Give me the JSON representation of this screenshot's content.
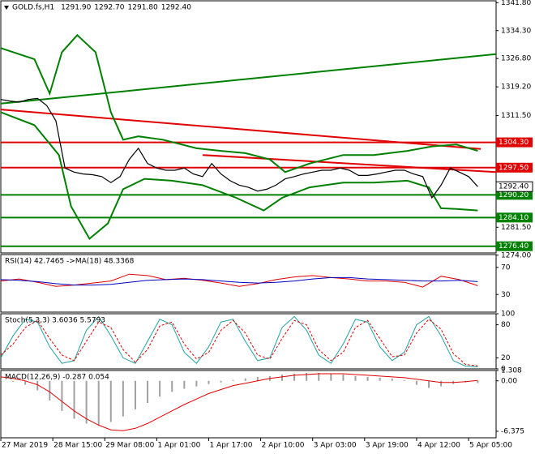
{
  "chart_data": [
    {
      "type": "line",
      "title": "GOLD.fs,H1",
      "ohlc": [
        "1291.90",
        "1292.70",
        "1291.80",
        "1292.40"
      ],
      "xlim": [
        0,
        162
      ],
      "xticks": [
        {
          "value": 0,
          "label": "27 Mar 2019"
        },
        {
          "value": 17,
          "label": "28 Mar 15:00"
        },
        {
          "value": 34,
          "label": "29 Mar 08:00"
        },
        {
          "value": 51,
          "label": "1 Apr 01:00"
        },
        {
          "value": 68,
          "label": "1 Apr 17:00"
        },
        {
          "value": 85,
          "label": "2 Apr 10:00"
        },
        {
          "value": 102,
          "label": "3 Apr 03:00"
        },
        {
          "value": 119,
          "label": "3 Apr 19:00"
        },
        {
          "value": 136,
          "label": "4 Apr 12:00"
        },
        {
          "value": 153,
          "label": "5 Apr 05:00"
        }
      ],
      "ylim": [
        1274.6,
        1342.3
      ],
      "yticks": [
        {
          "value": 1341.8,
          "label": "1341.80"
        },
        {
          "value": 1334.3,
          "label": "1334.30"
        },
        {
          "value": 1326.8,
          "label": "1326.80"
        },
        {
          "value": 1319.2,
          "label": "1319.20"
        },
        {
          "value": 1311.5,
          "label": "1311.50"
        },
        {
          "value": 1281.5,
          "label": "1281.50"
        },
        {
          "value": 1274.0,
          "label": "1274.00"
        }
      ],
      "levels": [
        {
          "value": 1304.3,
          "label": "1304.30",
          "color": "#e00000"
        },
        {
          "value": 1297.5,
          "label": "1297.50",
          "color": "#e00000"
        },
        {
          "value": 1290.2,
          "label": "1290.20",
          "color": "#008000"
        },
        {
          "value": 1284.1,
          "label": "1284.10",
          "color": "#008000"
        },
        {
          "value": 1276.4,
          "label": "1276.40",
          "color": "#008000"
        }
      ],
      "last_price": {
        "value": 1292.4,
        "label": "1292.40"
      },
      "series": [
        {
          "color": "#008000",
          "width": 2,
          "x": [
            0,
            162
          ],
          "values": [
            1314.7,
            1328.0
          ]
        },
        {
          "color": "#e00000",
          "width": 2,
          "x": [
            0,
            157
          ],
          "values": [
            1313.1,
            1302.5
          ]
        },
        {
          "color": "#e00000",
          "width": 2,
          "x": [
            66,
            162
          ],
          "values": [
            1300.9,
            1296.3
          ]
        },
        {
          "color": "#008000",
          "width": 2,
          "x": [
            0,
            11,
            16,
            20,
            25,
            31,
            36,
            40,
            45,
            53,
            64,
            72,
            80,
            88,
            93,
            101,
            112,
            122,
            133,
            141,
            149,
            156
          ],
          "values": [
            1329.6,
            1326.6,
            1317.4,
            1328.5,
            1333.1,
            1328.5,
            1312.4,
            1305.0,
            1305.9,
            1305.0,
            1302.7,
            1302.0,
            1301.4,
            1299.7,
            1296.3,
            1298.6,
            1300.9,
            1300.9,
            1302.0,
            1303.2,
            1303.7,
            1302.0
          ]
        },
        {
          "color": "#008000",
          "width": 2,
          "x": [
            0,
            11,
            19,
            23,
            29,
            35,
            40,
            47,
            56,
            66,
            77,
            86,
            92,
            101,
            112,
            122,
            133,
            140,
            144,
            149,
            156
          ],
          "values": [
            1312.4,
            1308.9,
            1300.9,
            1287.1,
            1278.4,
            1282.5,
            1291.7,
            1294.5,
            1294.0,
            1292.8,
            1289.4,
            1286.0,
            1289.4,
            1292.2,
            1293.5,
            1293.5,
            1294.0,
            1292.2,
            1286.6,
            1286.4,
            1286.0
          ]
        },
        {
          "color": "#000000",
          "width": 1.2,
          "x": [
            0,
            3,
            6,
            9,
            12,
            15,
            18,
            21,
            24,
            27,
            30,
            33,
            36,
            39,
            42,
            45,
            48,
            51,
            54,
            57,
            60,
            63,
            66,
            69,
            72,
            75,
            78,
            81,
            84,
            87,
            90,
            93,
            96,
            99,
            102,
            105,
            108,
            111,
            114,
            117,
            120,
            123,
            126,
            129,
            132,
            135,
            138,
            141,
            144,
            147,
            150,
            153,
            156
          ],
          "values": [
            1315.8,
            1315.4,
            1315.1,
            1315.8,
            1316.1,
            1314.2,
            1310.1,
            1297.4,
            1296.3,
            1295.8,
            1295.6,
            1295.1,
            1293.5,
            1295.1,
            1299.7,
            1302.7,
            1298.6,
            1297.4,
            1296.8,
            1296.8,
            1297.4,
            1295.8,
            1295.1,
            1298.6,
            1295.8,
            1294.0,
            1292.8,
            1292.2,
            1291.2,
            1291.7,
            1292.8,
            1294.5,
            1295.1,
            1295.8,
            1296.3,
            1296.8,
            1296.8,
            1297.4,
            1296.8,
            1295.4,
            1295.4,
            1295.8,
            1296.3,
            1296.8,
            1296.8,
            1295.8,
            1295.1,
            1289.4,
            1292.8,
            1297.4,
            1296.3,
            1295.1,
            1292.4
          ]
        }
      ]
    },
    {
      "type": "line",
      "title": "RSI(14) 42.7465  ->MA(18) 48.3368",
      "ylim": [
        4,
        89
      ],
      "yticks": [
        70,
        30
      ],
      "series": [
        {
          "color": "#e00000",
          "width": 1,
          "x": [
            0,
            6,
            12,
            18,
            24,
            30,
            36,
            42,
            48,
            54,
            60,
            66,
            72,
            78,
            84,
            90,
            96,
            102,
            108,
            114,
            120,
            126,
            132,
            138,
            144,
            150,
            156
          ],
          "values": [
            50,
            53,
            48,
            42,
            44,
            47,
            50,
            60,
            58,
            52,
            54,
            51,
            47,
            42,
            46,
            52,
            56,
            58,
            55,
            53,
            50,
            50,
            48,
            41,
            57,
            52,
            43
          ]
        },
        {
          "color": "#0000c0",
          "width": 1,
          "x": [
            0,
            6,
            12,
            18,
            24,
            30,
            36,
            42,
            48,
            54,
            60,
            66,
            72,
            78,
            84,
            90,
            96,
            102,
            108,
            114,
            120,
            126,
            132,
            138,
            144,
            150,
            156
          ],
          "values": [
            52,
            51,
            49,
            46,
            44,
            44,
            45,
            48,
            51,
            52,
            53,
            52,
            50,
            48,
            47,
            48,
            50,
            53,
            55,
            55,
            53,
            52,
            51,
            50,
            50,
            51,
            49
          ]
        }
      ]
    },
    {
      "type": "line",
      "title": "Stoch(5,3,3) 3.6036 5.5793",
      "ylim": [
        0,
        100
      ],
      "yticks": [
        100,
        80,
        20,
        0
      ],
      "series": [
        {
          "color": "#20a0a0",
          "width": 1,
          "x": [
            0,
            4,
            8,
            12,
            16,
            20,
            24,
            28,
            32,
            36,
            40,
            44,
            48,
            52,
            56,
            60,
            64,
            68,
            72,
            76,
            80,
            84,
            88,
            92,
            96,
            100,
            104,
            108,
            112,
            116,
            120,
            124,
            128,
            132,
            136,
            140,
            144,
            148,
            152,
            156
          ],
          "values": [
            20,
            60,
            90,
            85,
            40,
            10,
            15,
            70,
            95,
            60,
            20,
            10,
            50,
            90,
            80,
            30,
            10,
            40,
            85,
            90,
            50,
            15,
            20,
            75,
            95,
            70,
            25,
            10,
            45,
            90,
            85,
            40,
            15,
            30,
            80,
            95,
            60,
            15,
            5,
            3.6036
          ]
        },
        {
          "color": "#e00000",
          "width": 1,
          "dash": "3,2",
          "x": [
            0,
            4,
            8,
            12,
            16,
            20,
            24,
            28,
            32,
            36,
            40,
            44,
            48,
            52,
            56,
            60,
            64,
            68,
            72,
            76,
            80,
            84,
            88,
            92,
            96,
            100,
            104,
            108,
            112,
            116,
            120,
            124,
            128,
            132,
            136,
            140,
            144,
            148,
            152,
            156
          ],
          "values": [
            25,
            45,
            75,
            88,
            55,
            25,
            15,
            50,
            85,
            75,
            35,
            12,
            35,
            78,
            85,
            45,
            18,
            30,
            70,
            88,
            65,
            25,
            18,
            55,
            88,
            80,
            35,
            15,
            30,
            75,
            88,
            55,
            22,
            25,
            65,
            90,
            72,
            28,
            8,
            5.5793
          ]
        }
      ]
    },
    {
      "type": "combo",
      "title": "MACD(12,26,9) -0.287 0.054",
      "ylim": [
        -7.2,
        1.308
      ],
      "yticks": [
        1.308,
        {
          "value": 0,
          "label": "0.00"
        },
        -6.375
      ],
      "series": [
        {
          "kind": "bar",
          "color": "#a0a0a0",
          "x": [
            0,
            4,
            8,
            12,
            16,
            20,
            24,
            28,
            32,
            36,
            40,
            44,
            48,
            52,
            56,
            60,
            64,
            68,
            72,
            76,
            80,
            84,
            88,
            92,
            96,
            100,
            104,
            108,
            112,
            116,
            120,
            124,
            128,
            132,
            136,
            140,
            144,
            148,
            152,
            156
          ],
          "values": [
            0.2,
            -0.1,
            -0.5,
            -1.2,
            -2.5,
            -3.8,
            -4.8,
            -5.4,
            -5.6,
            -5.2,
            -4.5,
            -3.6,
            -2.8,
            -2.0,
            -1.4,
            -1.0,
            -0.7,
            -0.4,
            -0.2,
            0.1,
            0.3,
            0.5,
            0.6,
            0.8,
            0.9,
            1.0,
            1.0,
            0.9,
            0.8,
            0.6,
            0.5,
            0.4,
            0.3,
            0.1,
            -0.5,
            -0.9,
            -0.7,
            -0.4,
            -0.2,
            -0.287
          ]
        },
        {
          "kind": "line",
          "color": "#e00000",
          "width": 1,
          "x": [
            0,
            4,
            8,
            12,
            16,
            20,
            24,
            28,
            32,
            36,
            40,
            44,
            48,
            52,
            56,
            60,
            64,
            68,
            72,
            76,
            80,
            84,
            88,
            92,
            96,
            100,
            104,
            108,
            112,
            116,
            120,
            124,
            128,
            132,
            136,
            140,
            144,
            148,
            152,
            156
          ],
          "values": [
            0.5,
            0.3,
            0.0,
            -0.5,
            -1.4,
            -2.6,
            -3.8,
            -4.8,
            -5.6,
            -6.2,
            -6.3,
            -6.0,
            -5.4,
            -4.6,
            -3.8,
            -3.0,
            -2.3,
            -1.6,
            -1.1,
            -0.6,
            -0.3,
            0.0,
            0.3,
            0.5,
            0.7,
            0.8,
            0.9,
            0.9,
            0.9,
            0.8,
            0.7,
            0.6,
            0.5,
            0.4,
            0.2,
            0.0,
            -0.2,
            -0.2,
            -0.1,
            0.054
          ]
        }
      ]
    }
  ]
}
